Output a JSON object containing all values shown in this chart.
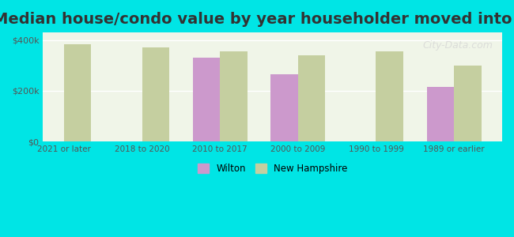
{
  "title": "Median house/condo value by year householder moved into unit",
  "categories": [
    "2021 or later",
    "2018 to 2020",
    "2010 to 2017",
    "2000 to 2009",
    "1990 to 1999",
    "1989 or earlier"
  ],
  "wilton_values": [
    null,
    null,
    330000,
    265000,
    null,
    215000
  ],
  "nh_values": [
    385000,
    370000,
    355000,
    340000,
    355000,
    300000
  ],
  "wilton_color": "#cc99cc",
  "nh_color": "#c5cfa0",
  "background_outer": "#00e5e5",
  "background_inner": "#f0f5e8",
  "yticks": [
    0,
    200000,
    400000
  ],
  "ytick_labels": [
    "$0",
    "$200k",
    "$400k"
  ],
  "ylim": [
    0,
    430000
  ],
  "bar_width": 0.35,
  "legend_wilton": "Wilton",
  "legend_nh": "New Hampshire",
  "title_fontsize": 14,
  "watermark": "City-Data.com"
}
